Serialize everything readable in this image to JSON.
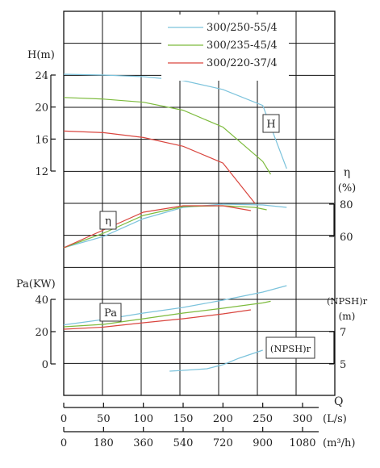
{
  "chart_data": {
    "type": "line",
    "legend": {
      "placement": "top-right",
      "entries": [
        {
          "name": "300/250-55/4",
          "color": "#7cc3dc"
        },
        {
          "name": "300/235-45/4",
          "color": "#7dbb3d"
        },
        {
          "name": "300/220-37/4",
          "color": "#d9463f"
        }
      ]
    },
    "axes": {
      "H": {
        "label": "H(m)",
        "ticks": [
          "24",
          "20",
          "16",
          "12"
        ],
        "range": [
          12,
          24
        ]
      },
      "eta": {
        "label_symbol": "η",
        "label_unit": "(%)",
        "ticks": [
          "80",
          "60"
        ],
        "range": [
          60,
          80
        ]
      },
      "Pa": {
        "label": "Pa(KW)",
        "ticks": [
          "40",
          "20",
          "0"
        ],
        "range": [
          0,
          40
        ]
      },
      "NPSH": {
        "label": "(NPSH)r",
        "unit": "(m)",
        "ticks": [
          "7",
          "5"
        ],
        "range": [
          5,
          7
        ]
      },
      "Q_ls": {
        "label": "Q",
        "unit": "(L/s)",
        "ticks": [
          "0",
          "50",
          "100",
          "150",
          "200",
          "250",
          "300"
        ],
        "range": [
          0,
          300
        ]
      },
      "Q_m3h": {
        "unit": "(m³/h)",
        "ticks": [
          "0",
          "180",
          "360",
          "540",
          "720",
          "900",
          "1080"
        ],
        "range": [
          0,
          1080
        ]
      }
    },
    "grid": true,
    "curve_labels": {
      "H": "H",
      "eta": "η",
      "Pa": "Pa",
      "NPSH": "(NPSH)r"
    },
    "series": [
      {
        "name": "300/250-55/4",
        "color": "#7cc3dc",
        "H": {
          "x": [
            0,
            50,
            100,
            150,
            200,
            250,
            280
          ],
          "y": [
            24.1,
            24.0,
            23.8,
            23.3,
            22.2,
            20.2,
            12.3
          ]
        },
        "eta": {
          "x": [
            0,
            50,
            100,
            150,
            200,
            250,
            280
          ],
          "y": [
            53,
            60,
            71,
            78,
            80,
            79.5,
            78
          ]
        },
        "Pa": {
          "x": [
            0,
            50,
            100,
            150,
            200,
            250,
            280
          ],
          "y": [
            24.2,
            27.5,
            31.5,
            35.0,
            39.5,
            44.5,
            48.5
          ]
        }
      },
      {
        "name": "300/235-45/4",
        "color": "#7dbb3d",
        "H": {
          "x": [
            0,
            50,
            100,
            150,
            200,
            250,
            260
          ],
          "y": [
            21.2,
            21.0,
            20.6,
            19.6,
            17.5,
            13.2,
            11.6
          ]
        },
        "eta": {
          "x": [
            0,
            50,
            100,
            150,
            200,
            240,
            255
          ],
          "y": [
            53,
            62,
            73,
            78.5,
            79,
            78,
            76.5
          ]
        },
        "Pa": {
          "x": [
            0,
            50,
            100,
            150,
            200,
            250,
            260
          ],
          "y": [
            23.0,
            24.5,
            28.0,
            31.5,
            34.5,
            37.8,
            38.8
          ]
        }
      },
      {
        "name": "300/220-37/4",
        "color": "#d9463f",
        "H": {
          "x": [
            0,
            50,
            100,
            150,
            200,
            240
          ],
          "y": [
            17.0,
            16.8,
            16.2,
            15.1,
            13.0,
            8.0
          ]
        },
        "eta": {
          "x": [
            0,
            50,
            100,
            150,
            200,
            235
          ],
          "y": [
            53,
            64,
            75,
            79,
            79,
            76
          ]
        },
        "Pa": {
          "x": [
            0,
            50,
            100,
            150,
            200,
            235
          ],
          "y": [
            21.5,
            22.8,
            25.5,
            28.0,
            31.0,
            33.5
          ]
        }
      }
    ],
    "npsh_curve": {
      "color": "#7cc3dc",
      "x": [
        133,
        150,
        180,
        200,
        220,
        250
      ],
      "y": [
        4.55,
        4.6,
        4.7,
        4.95,
        5.35,
        5.85
      ]
    }
  }
}
